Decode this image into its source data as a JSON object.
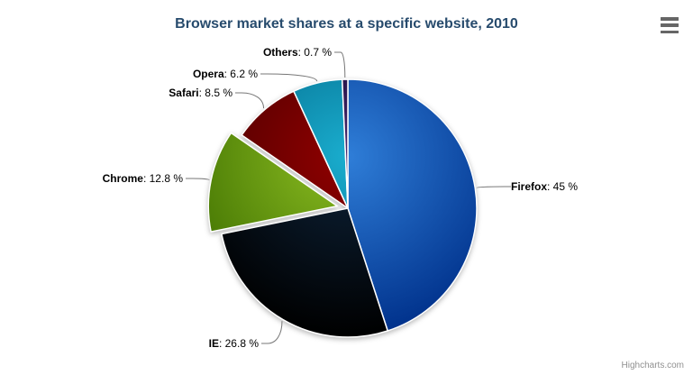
{
  "header": {
    "title": "Browser market shares at a specific website, 2010"
  },
  "credits": {
    "label": "Highcharts.com"
  },
  "menu": {
    "icon": "hamburger-menu-icon"
  },
  "chart_data": {
    "type": "pie",
    "title": "Browser market shares at a specific website, 2010",
    "label_separator": ": ",
    "unit_suffix": " %",
    "legend": "none",
    "labels_style": "outside-with-connectors",
    "start_angle_deg": 0,
    "clockwise": true,
    "points": [
      {
        "name": "Firefox",
        "value": 45,
        "display": "45",
        "color": "#2f7ed8",
        "sliced": false
      },
      {
        "name": "IE",
        "value": 26.8,
        "display": "26.8",
        "color": "#0d233a",
        "sliced": false
      },
      {
        "name": "Chrome",
        "value": 12.8,
        "display": "12.8",
        "color": "#8bbc21",
        "sliced": true
      },
      {
        "name": "Safari",
        "value": 8.5,
        "display": "8.5",
        "color": "#910000",
        "sliced": false
      },
      {
        "name": "Opera",
        "value": 6.2,
        "display": "6.2",
        "color": "#1aadce",
        "sliced": false
      },
      {
        "name": "Others",
        "value": 0.7,
        "display": "0.7",
        "color": "#492970",
        "sliced": false
      }
    ]
  },
  "colors": {
    "title": "#274b6d",
    "label_text": "#000000",
    "connector": "#777777",
    "slice_border": "#ffffff",
    "credits": "#909090",
    "menu_icon": "#666666",
    "background": "#ffffff"
  }
}
